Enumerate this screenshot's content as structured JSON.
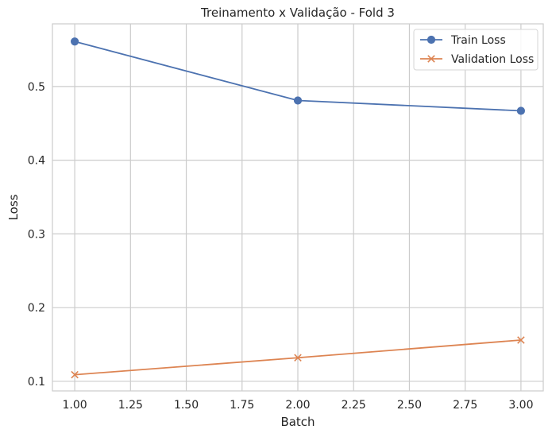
{
  "chart_data": {
    "type": "line",
    "title": "Treinamento x Validação - Fold 3",
    "xlabel": "Batch",
    "ylabel": "Loss",
    "xlim": [
      0.9,
      3.1
    ],
    "ylim": [
      0.087,
      0.585
    ],
    "xticks": [
      1.0,
      1.25,
      1.5,
      1.75,
      2.0,
      2.25,
      2.5,
      2.75,
      3.0
    ],
    "xtick_labels": [
      "1.00",
      "1.25",
      "1.50",
      "1.75",
      "2.00",
      "2.25",
      "2.50",
      "2.75",
      "3.00"
    ],
    "yticks": [
      0.1,
      0.2,
      0.3,
      0.4,
      0.5
    ],
    "ytick_labels": [
      "0.1",
      "0.2",
      "0.3",
      "0.4",
      "0.5"
    ],
    "grid": true,
    "legend_position": "top-right",
    "series": [
      {
        "name": "Train Loss",
        "marker": "circle",
        "color": "#4c72b0",
        "x": [
          1,
          2,
          3
        ],
        "values": [
          0.561,
          0.481,
          0.467
        ]
      },
      {
        "name": "Validation Loss",
        "marker": "x",
        "color": "#dd8452",
        "x": [
          1,
          2,
          3
        ],
        "values": [
          0.109,
          0.132,
          0.156
        ]
      }
    ]
  }
}
